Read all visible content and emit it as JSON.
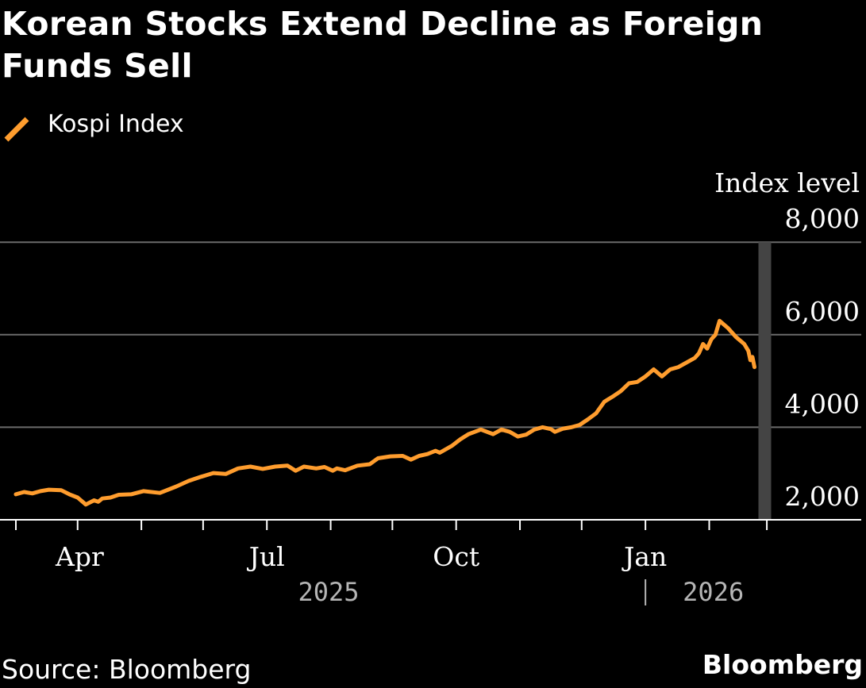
{
  "chart_data": {
    "type": "line",
    "title": "Korean Stocks Extend Decline as Foreign Funds Sell",
    "ylabel": "Index level",
    "xlabel": "",
    "ylim": [
      1700,
      8000
    ],
    "y_ticks": [
      {
        "value": 2000,
        "label": "2,000"
      },
      {
        "value": 4000,
        "label": "4,000"
      },
      {
        "value": 6000,
        "label": "6,000"
      },
      {
        "value": 8000,
        "label": "8,000"
      }
    ],
    "x_domain": [
      0,
      359
    ],
    "x_tick_days": [
      0,
      30,
      61,
      91,
      122,
      153,
      183,
      214,
      245,
      275,
      306,
      337,
      365
    ],
    "x_labels": [
      {
        "day": 31,
        "text": "Apr"
      },
      {
        "day": 122,
        "text": "Jul"
      },
      {
        "day": 214,
        "text": "Oct"
      },
      {
        "day": 306,
        "text": "Jan"
      }
    ],
    "year_labels": [
      {
        "day": 152,
        "text": "2025"
      },
      {
        "day": 339,
        "text": "2026"
      }
    ],
    "year_divider_day": 306,
    "highlight_day": 364,
    "series": [
      {
        "name": "Kospi Index",
        "color": "#ff9d2e",
        "x": [
          0,
          4,
          8,
          12,
          16,
          22,
          26,
          30,
          34,
          38,
          40,
          42,
          46,
          50,
          56,
          62,
          70,
          78,
          84,
          90,
          96,
          102,
          108,
          114,
          120,
          126,
          132,
          136,
          140,
          146,
          150,
          154,
          156,
          160,
          166,
          172,
          176,
          182,
          188,
          192,
          196,
          200,
          204,
          206,
          212,
          216,
          220,
          226,
          232,
          236,
          240,
          244,
          248,
          252,
          256,
          260,
          262,
          266,
          270,
          274,
          278,
          282,
          286,
          290,
          294,
          298,
          302,
          306,
          310,
          314,
          318,
          322,
          326,
          330,
          332,
          334,
          336,
          338,
          340,
          342,
          346,
          350,
          354,
          356,
          357,
          358,
          359
        ],
        "values": [
          2550,
          2600,
          2570,
          2620,
          2650,
          2640,
          2550,
          2480,
          2330,
          2420,
          2390,
          2460,
          2480,
          2540,
          2550,
          2620,
          2580,
          2720,
          2840,
          2930,
          3010,
          2990,
          3110,
          3150,
          3100,
          3150,
          3170,
          3060,
          3150,
          3110,
          3140,
          3060,
          3110,
          3070,
          3170,
          3200,
          3330,
          3370,
          3380,
          3300,
          3380,
          3420,
          3490,
          3450,
          3600,
          3740,
          3850,
          3950,
          3850,
          3950,
          3900,
          3800,
          3840,
          3950,
          4000,
          3960,
          3900,
          3970,
          4000,
          4050,
          4170,
          4300,
          4550,
          4660,
          4780,
          4950,
          4980,
          5100,
          5250,
          5100,
          5250,
          5300,
          5400,
          5500,
          5600,
          5800,
          5700,
          5900,
          6000,
          6300,
          6150,
          5950,
          5800,
          5650,
          5450,
          5520,
          5300
        ]
      }
    ]
  },
  "legend": {
    "label": "Kospi Index"
  },
  "footer": {
    "source": "Source: Bloomberg",
    "brand": "Bloomberg"
  }
}
